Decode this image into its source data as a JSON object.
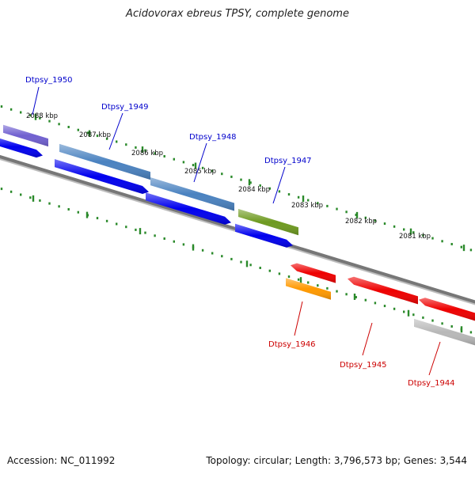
{
  "title": "Acidovorax ebreus TPSY, complete genome",
  "footer": {
    "accession": "Accession: NC_011992",
    "summary": "Topology: circular; Length: 3,796,573 bp; Genes: 3,544"
  },
  "colors": {
    "forward_label": "#0000cc",
    "reverse_label": "#cc0000",
    "tick": "#2b8a2b",
    "backbone": "#777777"
  },
  "ticks": [
    {
      "label": "2088 kbp"
    },
    {
      "label": "2087 kbp"
    },
    {
      "label": "2086 kbp"
    },
    {
      "label": "2085 kbp"
    },
    {
      "label": "2084 kbp"
    },
    {
      "label": "2083 kbp"
    },
    {
      "label": "2082 kbp"
    },
    {
      "label": "2081 kbp"
    }
  ],
  "genes": [
    {
      "label": "Dtpsy_1950",
      "strand": "forward",
      "color": "#0000ee"
    },
    {
      "label": "Dtpsy_1949",
      "strand": "forward",
      "color": "#0000ee"
    },
    {
      "label": "Dtpsy_1948",
      "strand": "forward",
      "color": "#0000ee"
    },
    {
      "label": "Dtpsy_1947",
      "strand": "forward",
      "color": "#0000ee"
    },
    {
      "label": "Dtpsy_1946",
      "strand": "reverse",
      "color": "#ee0000"
    },
    {
      "label": "Dtpsy_1945",
      "strand": "reverse",
      "color": "#ee0000"
    },
    {
      "label": "Dtpsy_1944",
      "strand": "reverse",
      "color": "#ee0000"
    }
  ],
  "features": [
    {
      "name": "feature-purple",
      "color": "#7060d0"
    },
    {
      "name": "feature-steelblue-1",
      "color": "#4a82c0"
    },
    {
      "name": "feature-steelblue-2",
      "color": "#4a82c0"
    },
    {
      "name": "feature-olive",
      "color": "#6e9a20"
    },
    {
      "name": "feature-orange",
      "color": "#ff9900"
    },
    {
      "name": "feature-silver",
      "color": "#b8b8b8"
    }
  ]
}
